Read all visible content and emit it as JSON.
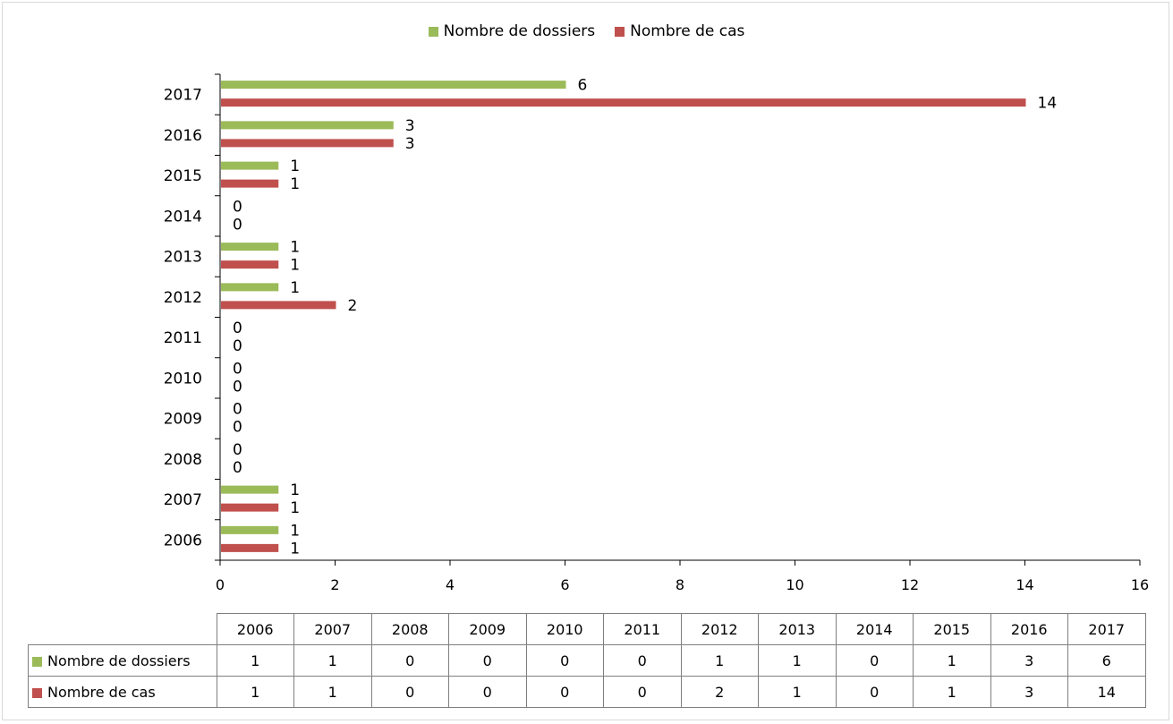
{
  "chart_data": {
    "type": "bar",
    "orientation": "horizontal",
    "categories": [
      "2006",
      "2007",
      "2008",
      "2009",
      "2010",
      "2011",
      "2012",
      "2013",
      "2014",
      "2015",
      "2016",
      "2017"
    ],
    "series": [
      {
        "name": "Nombre de dossiers",
        "color": "#9bbb59",
        "values": [
          1,
          1,
          0,
          0,
          0,
          0,
          1,
          1,
          0,
          1,
          3,
          6
        ]
      },
      {
        "name": "Nombre de cas",
        "color": "#c0504d",
        "values": [
          1,
          1,
          0,
          0,
          0,
          0,
          2,
          1,
          0,
          1,
          3,
          14
        ]
      }
    ],
    "xlim": [
      0,
      16
    ],
    "xticks": [
      0,
      2,
      4,
      6,
      8,
      10,
      12,
      14,
      16
    ],
    "grid": false,
    "legend": "top-center",
    "data_table": true
  }
}
